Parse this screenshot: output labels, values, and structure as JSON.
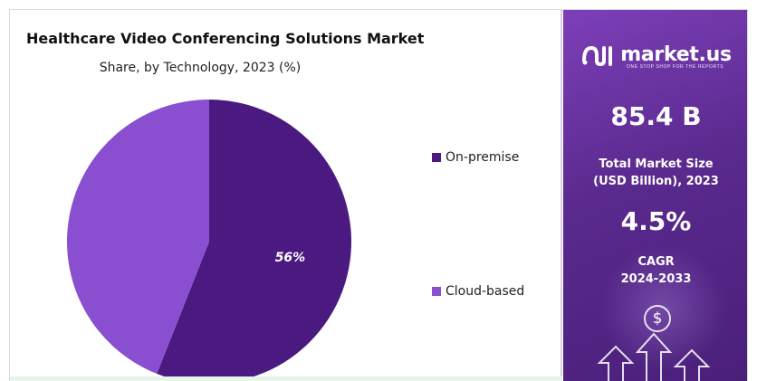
{
  "chart_data": {
    "type": "pie",
    "title": "Healthcare Video Conferencing Solutions Market",
    "subtitle": "Share, by Technology, 2023 (%)",
    "slices": [
      {
        "name": "On-premise",
        "value": 56,
        "label": "56%",
        "color": "#4b1a80"
      },
      {
        "name": "Cloud-based",
        "value": 44,
        "label": "",
        "color": "#8a4fd0"
      }
    ],
    "legend": "right",
    "start_angle_deg": 0
  },
  "sidebar": {
    "brand": "market.us",
    "tagline": "ONE STOP SHOP FOR THE REPORTS",
    "market_size_value": "85.4 B",
    "market_size_label_line1": "Total Market Size",
    "market_size_label_line2": "(USD Billion), 2023",
    "cagr_value": "4.5%",
    "cagr_label_line1": "CAGR",
    "cagr_label_line2": "2024-2033",
    "dollar_icon_text": "$"
  },
  "colors": {
    "on_premise": "#4b1a80",
    "cloud_based": "#8a4fd0",
    "panel_accent": "#6a33a6"
  }
}
